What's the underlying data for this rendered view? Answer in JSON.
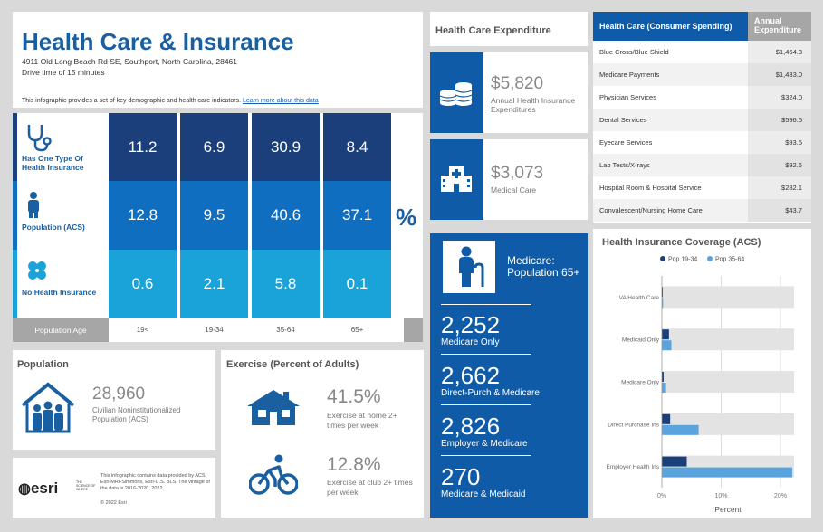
{
  "header": {
    "title": "Health Care & Insurance",
    "address": "4911 Old Long Beach Rd SE, Southport, North Carolina, 28461",
    "drive_time": "Drive time of 15 minutes",
    "description": "This infographic provides a set of key demographic and health care indicators. ",
    "learn_more": "Learn more about this data"
  },
  "grid": {
    "rows": [
      {
        "label": "Has One Type Of Health Insurance",
        "icon": "stethoscope-icon",
        "values": [
          "11.2",
          "6.9",
          "30.9",
          "8.4"
        ]
      },
      {
        "label": "Population (ACS)",
        "icon": "person-icon",
        "values": [
          "12.8",
          "9.5",
          "40.6",
          "37.1"
        ]
      },
      {
        "label": "No Health Insurance",
        "icon": "bandage-icon",
        "values": [
          "0.6",
          "2.1",
          "5.8",
          "0.1"
        ]
      }
    ],
    "population_age_label": "Population Age",
    "ages": [
      "19<",
      "19-34",
      "35-64",
      "65+"
    ],
    "percent_sign": "%",
    "colors": [
      "#1b3f7a",
      "#0f6ec0",
      "#1aa3d9"
    ]
  },
  "population": {
    "title": "Population",
    "value": "28,960",
    "label": "Civilian Noninstitutionalized Population (ACS)"
  },
  "exercise": {
    "title": "Exercise (Percent of Adults)",
    "items": [
      {
        "value": "41.5%",
        "label": "Exercise at home 2+ times per week",
        "icon": "home-icon"
      },
      {
        "value": "12.8%",
        "label": "Exercise at club 2+ times per week",
        "icon": "bicycle-icon"
      }
    ]
  },
  "esri": {
    "logo": "esri",
    "tagline": "THE SCIENCE OF WHERE",
    "info": "This infographic contains data provided by ACS, Esri-MRI-Simmons, Esri-U.S. BLS. The vintage of the data is 2016-2020, 2022.",
    "copyright": "© 2022 Esri"
  },
  "expenditure": {
    "title": "Health Care Expenditure",
    "cards": [
      {
        "value": "$5,820",
        "label": "Annual Health Insurance Expenditures",
        "icon": "coins-icon"
      },
      {
        "value": "$3,073",
        "label": "Medical Care",
        "icon": "hospital-icon"
      }
    ]
  },
  "medicare": {
    "title": "Medicare: Population 65+",
    "items": [
      {
        "value": "2,252",
        "label": "Medicare Only"
      },
      {
        "value": "2,662",
        "label": "Direct-Purch & Medicare"
      },
      {
        "value": "2,826",
        "label": "Employer & Medicare"
      },
      {
        "value": "270",
        "label": "Medicare & Medicaid"
      }
    ]
  },
  "spending": {
    "header_left": "Health Care (Consumer Spending)",
    "header_right": "Annual Expenditure",
    "rows": [
      {
        "name": "Blue Cross/Blue Shield",
        "value": "$1,464.3"
      },
      {
        "name": "Medicare Payments",
        "value": "$1,433.0"
      },
      {
        "name": "Physician Services",
        "value": "$324.0"
      },
      {
        "name": "Dental Services",
        "value": "$596.5"
      },
      {
        "name": "Eyecare Services",
        "value": "$93.5"
      },
      {
        "name": "Lab Tests/X-rays",
        "value": "$92.6"
      },
      {
        "name": "Hospital Room & Hospital Service",
        "value": "$282.1"
      },
      {
        "name": "Convalescent/Nursing Home Care",
        "value": "$43.7"
      }
    ]
  },
  "chart_data": {
    "type": "bar",
    "orientation": "horizontal",
    "title": "Health Insurance Coverage (ACS)",
    "categories": [
      "VA Health Care",
      "Medicaid Only",
      "Medicare Only",
      "Direct Purchase Ins",
      "Employer Health Ins"
    ],
    "series": [
      {
        "name": "Pop 19-34",
        "color": "#1b3f7a",
        "values": [
          0.1,
          1.2,
          0.3,
          1.4,
          4.2
        ]
      },
      {
        "name": "Pop 35-64",
        "color": "#5aa3dc",
        "values": [
          0.2,
          1.6,
          0.7,
          6.2,
          22.0
        ]
      }
    ],
    "xlabel": "Percent",
    "xlim": [
      0,
      22.3
    ],
    "xticks": [
      "0%",
      "10%",
      "20%"
    ],
    "legend": "top"
  }
}
